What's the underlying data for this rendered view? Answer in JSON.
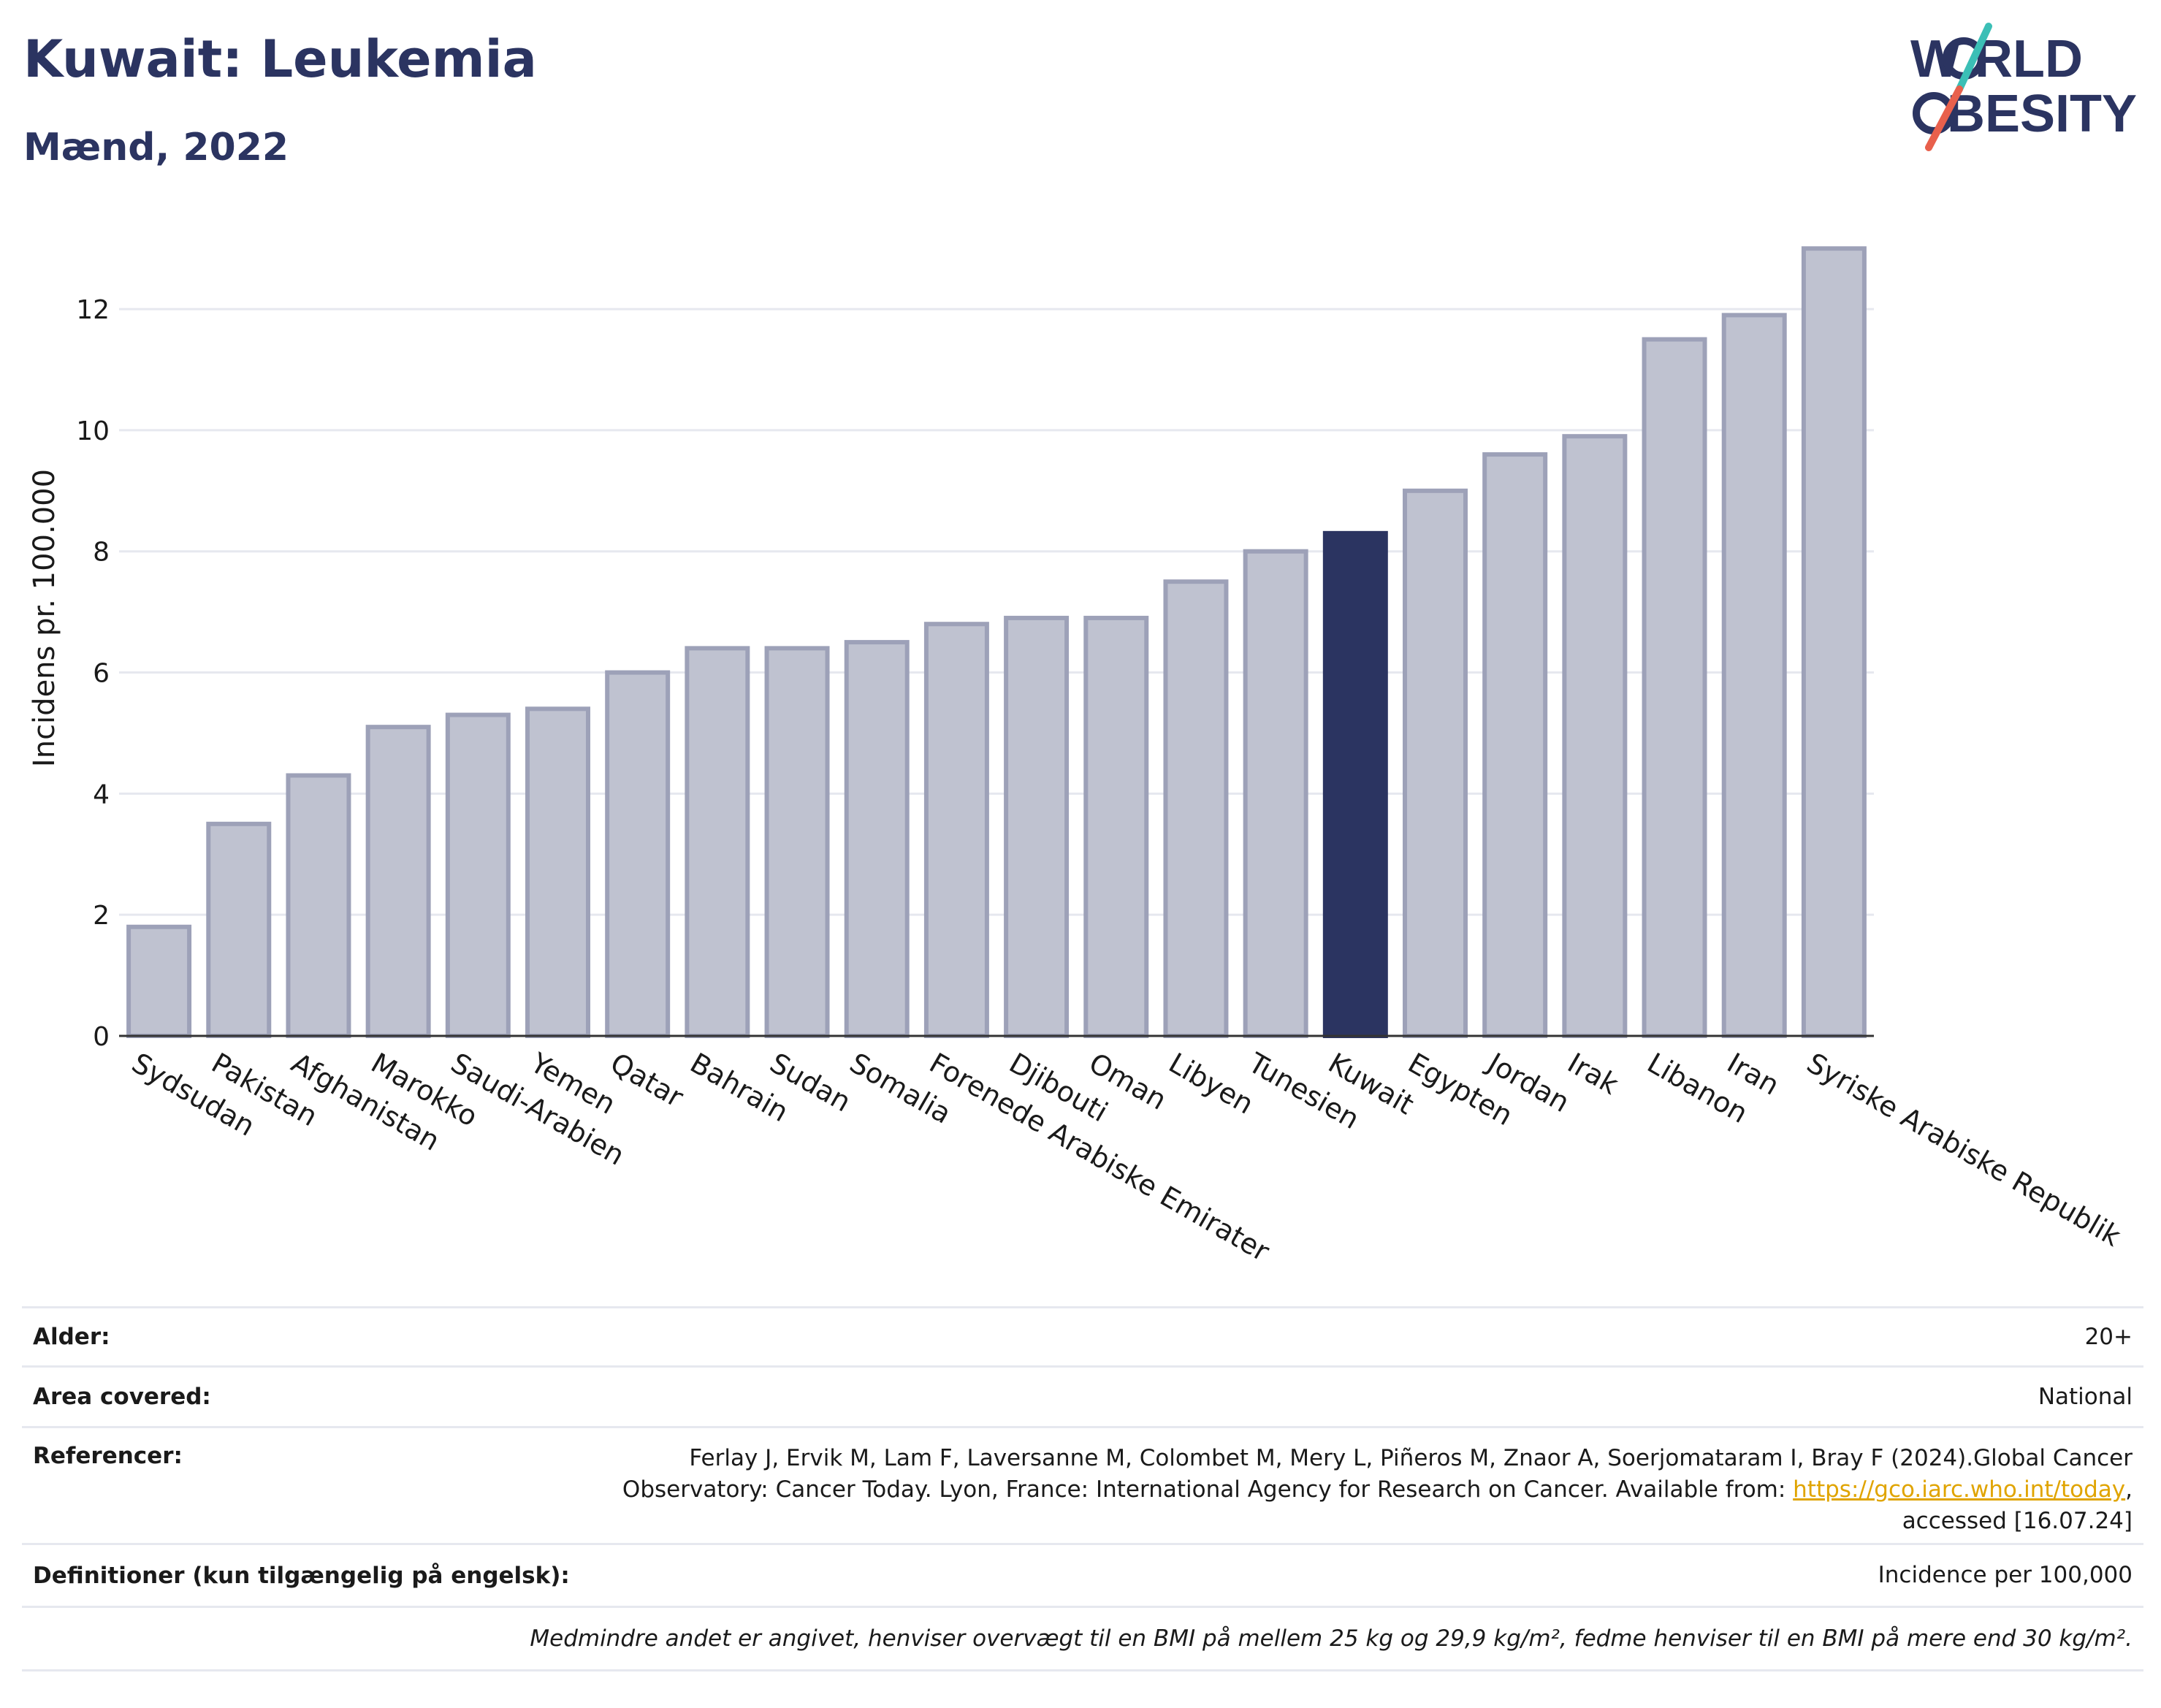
{
  "header": {
    "title": "Kuwait: Leukemia",
    "subtitle": "Mænd, 2022"
  },
  "logo": {
    "line1": "W RLD",
    "line2": "BESITY",
    "colors": {
      "text": "#2b3461",
      "slash_top": "#3bbfb6",
      "slash_bottom": "#e8604c"
    }
  },
  "chart_data": {
    "type": "bar",
    "title": "",
    "xlabel": "",
    "ylabel": "Incidens pr. 100.000",
    "ylim": [
      0,
      13.4
    ],
    "yticks": [
      0,
      2,
      4,
      6,
      8,
      10,
      12
    ],
    "grid": true,
    "highlight": "Kuwait",
    "colors": {
      "bar": "#bfc2d0",
      "bar_edge": "#9da1b8",
      "highlight": "#2b3461"
    },
    "categories": [
      "Sydsudan",
      "Pakistan",
      "Afghanistan",
      "Marokko",
      "Saudi-Arabien",
      "Yemen",
      "Qatar",
      "Bahrain",
      "Sudan",
      "Somalia",
      "Forenede Arabiske Emirater",
      "Djibouti",
      "Oman",
      "Libyen",
      "Tunesien",
      "Kuwait",
      "Egypten",
      "Jordan",
      "Irak",
      "Libanon",
      "Iran",
      "Syriske Arabiske Republik"
    ],
    "values": [
      1.8,
      3.5,
      4.3,
      5.1,
      5.3,
      5.4,
      6.0,
      6.4,
      6.4,
      6.5,
      6.8,
      6.9,
      6.9,
      7.5,
      8.0,
      8.3,
      9.0,
      9.6,
      9.9,
      11.5,
      11.9,
      13.0
    ]
  },
  "meta": {
    "age_label": "Alder:",
    "age_value": "20+",
    "area_label": "Area covered:",
    "area_value": "National",
    "ref_label": "Referencer:",
    "ref_text": "Ferlay J, Ervik M, Lam F, Laversanne M, Colombet M, Mery L, Piñeros M, Znaor A, Soerjomataram I, Bray F (2024).Global Cancer Observatory: Cancer Today. Lyon, France: International Agency for Research on Cancer. Available from: ",
    "ref_link": "https://gco.iarc.who.int/today",
    "ref_suffix": ", accessed [16.07.24]",
    "def_label": "Definitioner (kun tilgængelig på engelsk):",
    "def_value": "Incidence per 100,000",
    "note": "Medmindre andet er angivet, henviser overvægt til en BMI på mellem 25 kg og 29,9 kg/m², fedme henviser til en BMI på mere end 30 kg/m²."
  }
}
